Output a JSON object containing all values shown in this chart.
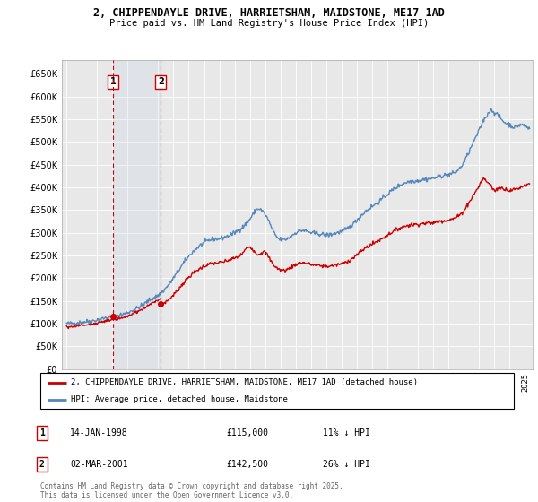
{
  "title": "2, CHIPPENDAYLE DRIVE, HARRIETSHAM, MAIDSTONE, ME17 1AD",
  "subtitle": "Price paid vs. HM Land Registry's House Price Index (HPI)",
  "ylim": [
    0,
    680000
  ],
  "yticks": [
    0,
    50000,
    100000,
    150000,
    200000,
    250000,
    300000,
    350000,
    400000,
    450000,
    500000,
    550000,
    600000,
    650000
  ],
  "chart_bg": "#e8e8e8",
  "fig_bg": "#ffffff",
  "grid_color": "#ffffff",
  "sale1_date_num": 1998.04,
  "sale1_price": 115000,
  "sale1_date_str": "14-JAN-1998",
  "sale1_pct": "11% ↓ HPI",
  "sale2_date_num": 2001.17,
  "sale2_price": 142500,
  "sale2_date_str": "02-MAR-2001",
  "sale2_pct": "26% ↓ HPI",
  "red_color": "#cc0000",
  "blue_color": "#5588bb",
  "legend_label_red": "2, CHIPPENDAYLE DRIVE, HARRIETSHAM, MAIDSTONE, ME17 1AD (detached house)",
  "legend_label_blue": "HPI: Average price, detached house, Maidstone",
  "footnote": "Contains HM Land Registry data © Crown copyright and database right 2025.\nThis data is licensed under the Open Government Licence v3.0.",
  "xlim_left": 1994.7,
  "xlim_right": 2025.5,
  "hpi_anchors": [
    [
      1995.0,
      100000
    ],
    [
      1995.5,
      101000
    ],
    [
      1996.0,
      103000
    ],
    [
      1996.5,
      105000
    ],
    [
      1997.0,
      108000
    ],
    [
      1997.5,
      112000
    ],
    [
      1998.0,
      115000
    ],
    [
      1998.5,
      119000
    ],
    [
      1999.0,
      124000
    ],
    [
      1999.5,
      132000
    ],
    [
      2000.0,
      141000
    ],
    [
      2000.5,
      153000
    ],
    [
      2001.0,
      162000
    ],
    [
      2001.5,
      178000
    ],
    [
      2002.0,
      200000
    ],
    [
      2002.5,
      225000
    ],
    [
      2003.0,
      248000
    ],
    [
      2003.5,
      265000
    ],
    [
      2004.0,
      278000
    ],
    [
      2004.5,
      285000
    ],
    [
      2005.0,
      287000
    ],
    [
      2005.5,
      292000
    ],
    [
      2006.0,
      300000
    ],
    [
      2006.5,
      312000
    ],
    [
      2007.0,
      330000
    ],
    [
      2007.5,
      352000
    ],
    [
      2008.0,
      340000
    ],
    [
      2008.25,
      325000
    ],
    [
      2008.5,
      305000
    ],
    [
      2009.0,
      285000
    ],
    [
      2009.5,
      288000
    ],
    [
      2010.0,
      300000
    ],
    [
      2010.5,
      305000
    ],
    [
      2011.0,
      300000
    ],
    [
      2011.5,
      298000
    ],
    [
      2012.0,
      295000
    ],
    [
      2012.5,
      298000
    ],
    [
      2013.0,
      303000
    ],
    [
      2013.5,
      312000
    ],
    [
      2014.0,
      328000
    ],
    [
      2014.5,
      345000
    ],
    [
      2015.0,
      358000
    ],
    [
      2015.5,
      370000
    ],
    [
      2016.0,
      385000
    ],
    [
      2016.5,
      398000
    ],
    [
      2017.0,
      408000
    ],
    [
      2017.5,
      413000
    ],
    [
      2018.0,
      415000
    ],
    [
      2018.5,
      418000
    ],
    [
      2019.0,
      420000
    ],
    [
      2019.5,
      425000
    ],
    [
      2020.0,
      428000
    ],
    [
      2020.5,
      435000
    ],
    [
      2021.0,
      455000
    ],
    [
      2021.25,
      472000
    ],
    [
      2021.5,
      490000
    ],
    [
      2021.75,
      508000
    ],
    [
      2022.0,
      525000
    ],
    [
      2022.25,
      545000
    ],
    [
      2022.5,
      558000
    ],
    [
      2022.75,
      570000
    ],
    [
      2023.0,
      565000
    ],
    [
      2023.25,
      558000
    ],
    [
      2023.5,
      548000
    ],
    [
      2023.75,
      542000
    ],
    [
      2024.0,
      538000
    ],
    [
      2024.25,
      533000
    ],
    [
      2024.5,
      535000
    ],
    [
      2024.75,
      538000
    ],
    [
      2025.0,
      535000
    ],
    [
      2025.3,
      530000
    ]
  ],
  "prop_anchors_before": [
    [
      1995.0,
      93000
    ],
    [
      1995.5,
      94000
    ],
    [
      1996.0,
      96000
    ],
    [
      1996.5,
      98000
    ],
    [
      1997.0,
      101000
    ],
    [
      1997.5,
      105000
    ],
    [
      1998.0,
      108000
    ],
    [
      1998.5,
      112000
    ],
    [
      1999.0,
      116000
    ],
    [
      1999.5,
      124000
    ],
    [
      2000.0,
      132000
    ],
    [
      2000.5,
      143000
    ],
    [
      2001.0,
      152000
    ],
    [
      2001.17,
      155000
    ]
  ],
  "prop_anchors_after": [
    [
      2001.17,
      142500
    ],
    [
      2001.5,
      148000
    ],
    [
      2002.0,
      163000
    ],
    [
      2002.5,
      183000
    ],
    [
      2003.0,
      202000
    ],
    [
      2003.5,
      216000
    ],
    [
      2004.0,
      226000
    ],
    [
      2004.5,
      232000
    ],
    [
      2005.0,
      234000
    ],
    [
      2005.5,
      238000
    ],
    [
      2006.0,
      244000
    ],
    [
      2006.5,
      254000
    ],
    [
      2007.0,
      269000
    ],
    [
      2007.5,
      253000
    ],
    [
      2008.0,
      257000
    ],
    [
      2008.25,
      245000
    ],
    [
      2008.5,
      232000
    ],
    [
      2009.0,
      218000
    ],
    [
      2009.5,
      220000
    ],
    [
      2010.0,
      230000
    ],
    [
      2010.5,
      234000
    ],
    [
      2011.0,
      230000
    ],
    [
      2011.5,
      228000
    ],
    [
      2012.0,
      226000
    ],
    [
      2012.5,
      228000
    ],
    [
      2013.0,
      232000
    ],
    [
      2013.5,
      239000
    ],
    [
      2014.0,
      251000
    ],
    [
      2014.5,
      265000
    ],
    [
      2015.0,
      275000
    ],
    [
      2015.5,
      284000
    ],
    [
      2016.0,
      295000
    ],
    [
      2016.5,
      305000
    ],
    [
      2017.0,
      313000
    ],
    [
      2017.5,
      317000
    ],
    [
      2018.0,
      319000
    ],
    [
      2018.5,
      321000
    ],
    [
      2019.0,
      322000
    ],
    [
      2019.5,
      326000
    ],
    [
      2020.0,
      328000
    ],
    [
      2020.5,
      334000
    ],
    [
      2021.0,
      349000
    ],
    [
      2021.25,
      362000
    ],
    [
      2021.5,
      376000
    ],
    [
      2021.75,
      390000
    ],
    [
      2022.0,
      403000
    ],
    [
      2022.25,
      418000
    ],
    [
      2022.5,
      413000
    ],
    [
      2022.75,
      405000
    ],
    [
      2023.0,
      393000
    ],
    [
      2023.25,
      398000
    ],
    [
      2023.5,
      398000
    ],
    [
      2023.75,
      396000
    ],
    [
      2024.0,
      393000
    ],
    [
      2024.25,
      395000
    ],
    [
      2024.5,
      397000
    ],
    [
      2024.75,
      401000
    ],
    [
      2025.0,
      405000
    ],
    [
      2025.3,
      408000
    ]
  ]
}
